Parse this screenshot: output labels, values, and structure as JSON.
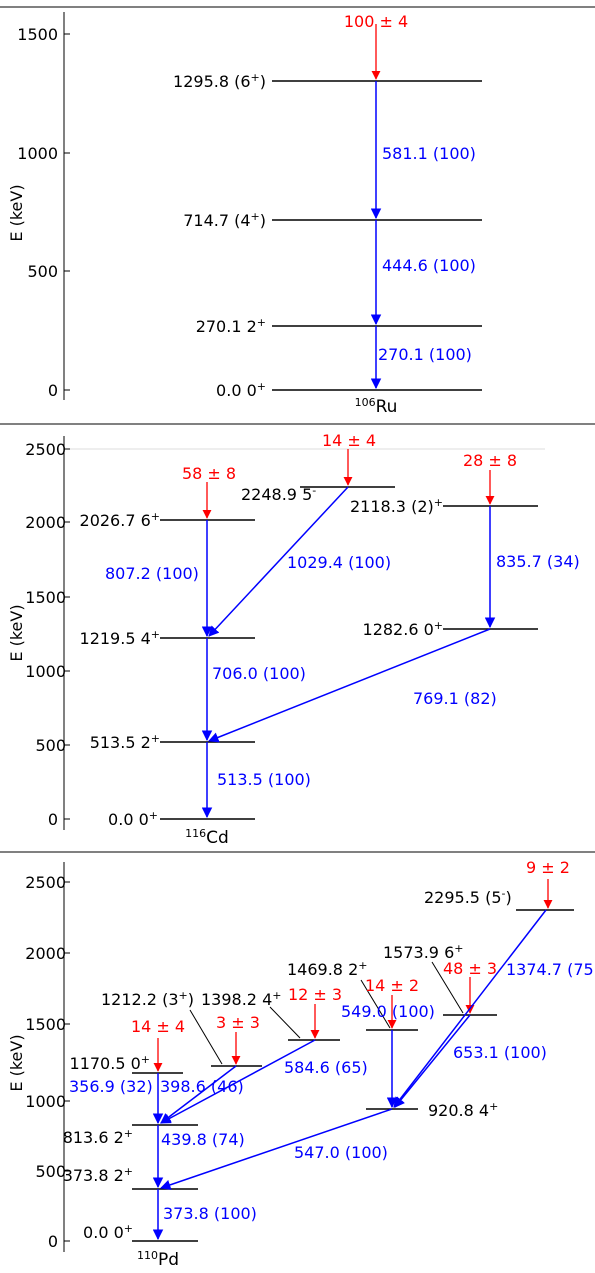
{
  "colors": {
    "level": "#000000",
    "transition": "#0000ff",
    "feeding": "#ff0000"
  },
  "axis_label": "E (keV)",
  "panels": [
    {
      "nucleus": {
        "mass": "106",
        "symbol": "Ru"
      },
      "y_ticks": [
        "0",
        "500",
        "1000",
        "1500"
      ],
      "levels": [
        {
          "energy": "1295.8",
          "spin": "(6",
          "spin_sup": "+",
          "spin_tail": ")"
        },
        {
          "energy": "714.7",
          "spin": "(4",
          "spin_sup": "+",
          "spin_tail": ")"
        },
        {
          "energy": "270.1",
          "spin": "2",
          "spin_sup": "+",
          "spin_tail": ""
        },
        {
          "energy": "0.0",
          "spin": "0",
          "spin_sup": "+",
          "spin_tail": ""
        }
      ],
      "transitions": [
        {
          "label": "581.1 (100)"
        },
        {
          "label": "444.6 (100)"
        },
        {
          "label": "270.1 (100)"
        }
      ],
      "feedings": [
        {
          "label": "100 ± 4"
        }
      ]
    },
    {
      "nucleus": {
        "mass": "116",
        "symbol": "Cd"
      },
      "y_ticks": [
        "0",
        "500",
        "1000",
        "1500",
        "2000",
        "2500"
      ],
      "levels": [
        {
          "energy": "2026.7",
          "spin": "6",
          "spin_sup": "+",
          "spin_tail": ""
        },
        {
          "energy": "2248.9",
          "spin": "5",
          "spin_sup": "-",
          "spin_tail": ""
        },
        {
          "energy": "2118.3",
          "spin": "(2)",
          "spin_sup": "+",
          "spin_tail": ""
        },
        {
          "energy": "1219.5",
          "spin": "4",
          "spin_sup": "+",
          "spin_tail": ""
        },
        {
          "energy": "1282.6",
          "spin": "0",
          "spin_sup": "+",
          "spin_tail": ""
        },
        {
          "energy": "513.5",
          "spin": "2",
          "spin_sup": "+",
          "spin_tail": ""
        },
        {
          "energy": "0.0",
          "spin": "0",
          "spin_sup": "+",
          "spin_tail": ""
        }
      ],
      "transitions": [
        {
          "label": "807.2 (100)"
        },
        {
          "label": "1029.4 (100)"
        },
        {
          "label": "835.7 (34)"
        },
        {
          "label": "706.0 (100)"
        },
        {
          "label": "769.1 (82)"
        },
        {
          "label": "513.5 (100)"
        }
      ],
      "feedings": [
        {
          "label": "58 ± 8"
        },
        {
          "label": "14 ± 4"
        },
        {
          "label": "28 ± 8"
        }
      ]
    },
    {
      "nucleus": {
        "mass": "110",
        "symbol": "Pd"
      },
      "y_ticks": [
        "0",
        "500",
        "1000",
        "1500",
        "2000",
        "2500"
      ],
      "levels": [
        {
          "energy": "2295.5",
          "spin": "(5",
          "spin_sup": "-",
          "spin_tail": ")"
        },
        {
          "energy": "1573.9",
          "spin": "6",
          "spin_sup": "+",
          "spin_tail": ""
        },
        {
          "energy": "1469.8",
          "spin": "2",
          "spin_sup": "+",
          "spin_tail": ""
        },
        {
          "energy": "1212.2",
          "spin": "(3",
          "spin_sup": "+",
          "spin_tail": ")"
        },
        {
          "energy": "1398.2",
          "spin": "4",
          "spin_sup": "+",
          "spin_tail": ""
        },
        {
          "energy": "1170.5",
          "spin": "0",
          "spin_sup": "+",
          "spin_tail": ""
        },
        {
          "energy": "813.6",
          "spin": "2",
          "spin_sup": "+",
          "spin_tail": ""
        },
        {
          "energy": "920.8",
          "spin": "4",
          "spin_sup": "+",
          "spin_tail": ""
        },
        {
          "energy": "373.8",
          "spin": "2",
          "spin_sup": "+",
          "spin_tail": ""
        },
        {
          "energy": "0.0",
          "spin": "0",
          "spin_sup": "+",
          "spin_tail": ""
        }
      ],
      "transitions": [
        {
          "label": "1374.7 (75"
        },
        {
          "label": "653.1 (100)"
        },
        {
          "label": "549.0 (100)"
        },
        {
          "label": "584.6 (65)"
        },
        {
          "label": "398.6 (46)"
        },
        {
          "label": "356.9 (32)"
        },
        {
          "label": "439.8 (74)"
        },
        {
          "label": "547.0 (100)"
        },
        {
          "label": "373.8 (100)"
        }
      ],
      "feedings": [
        {
          "label": "9 ± 2"
        },
        {
          "label": "48 ± 3"
        },
        {
          "label": "14 ± 2"
        },
        {
          "label": "12 ± 3"
        },
        {
          "label": "3 ± 3"
        },
        {
          "label": "14 ± 4"
        }
      ]
    }
  ]
}
